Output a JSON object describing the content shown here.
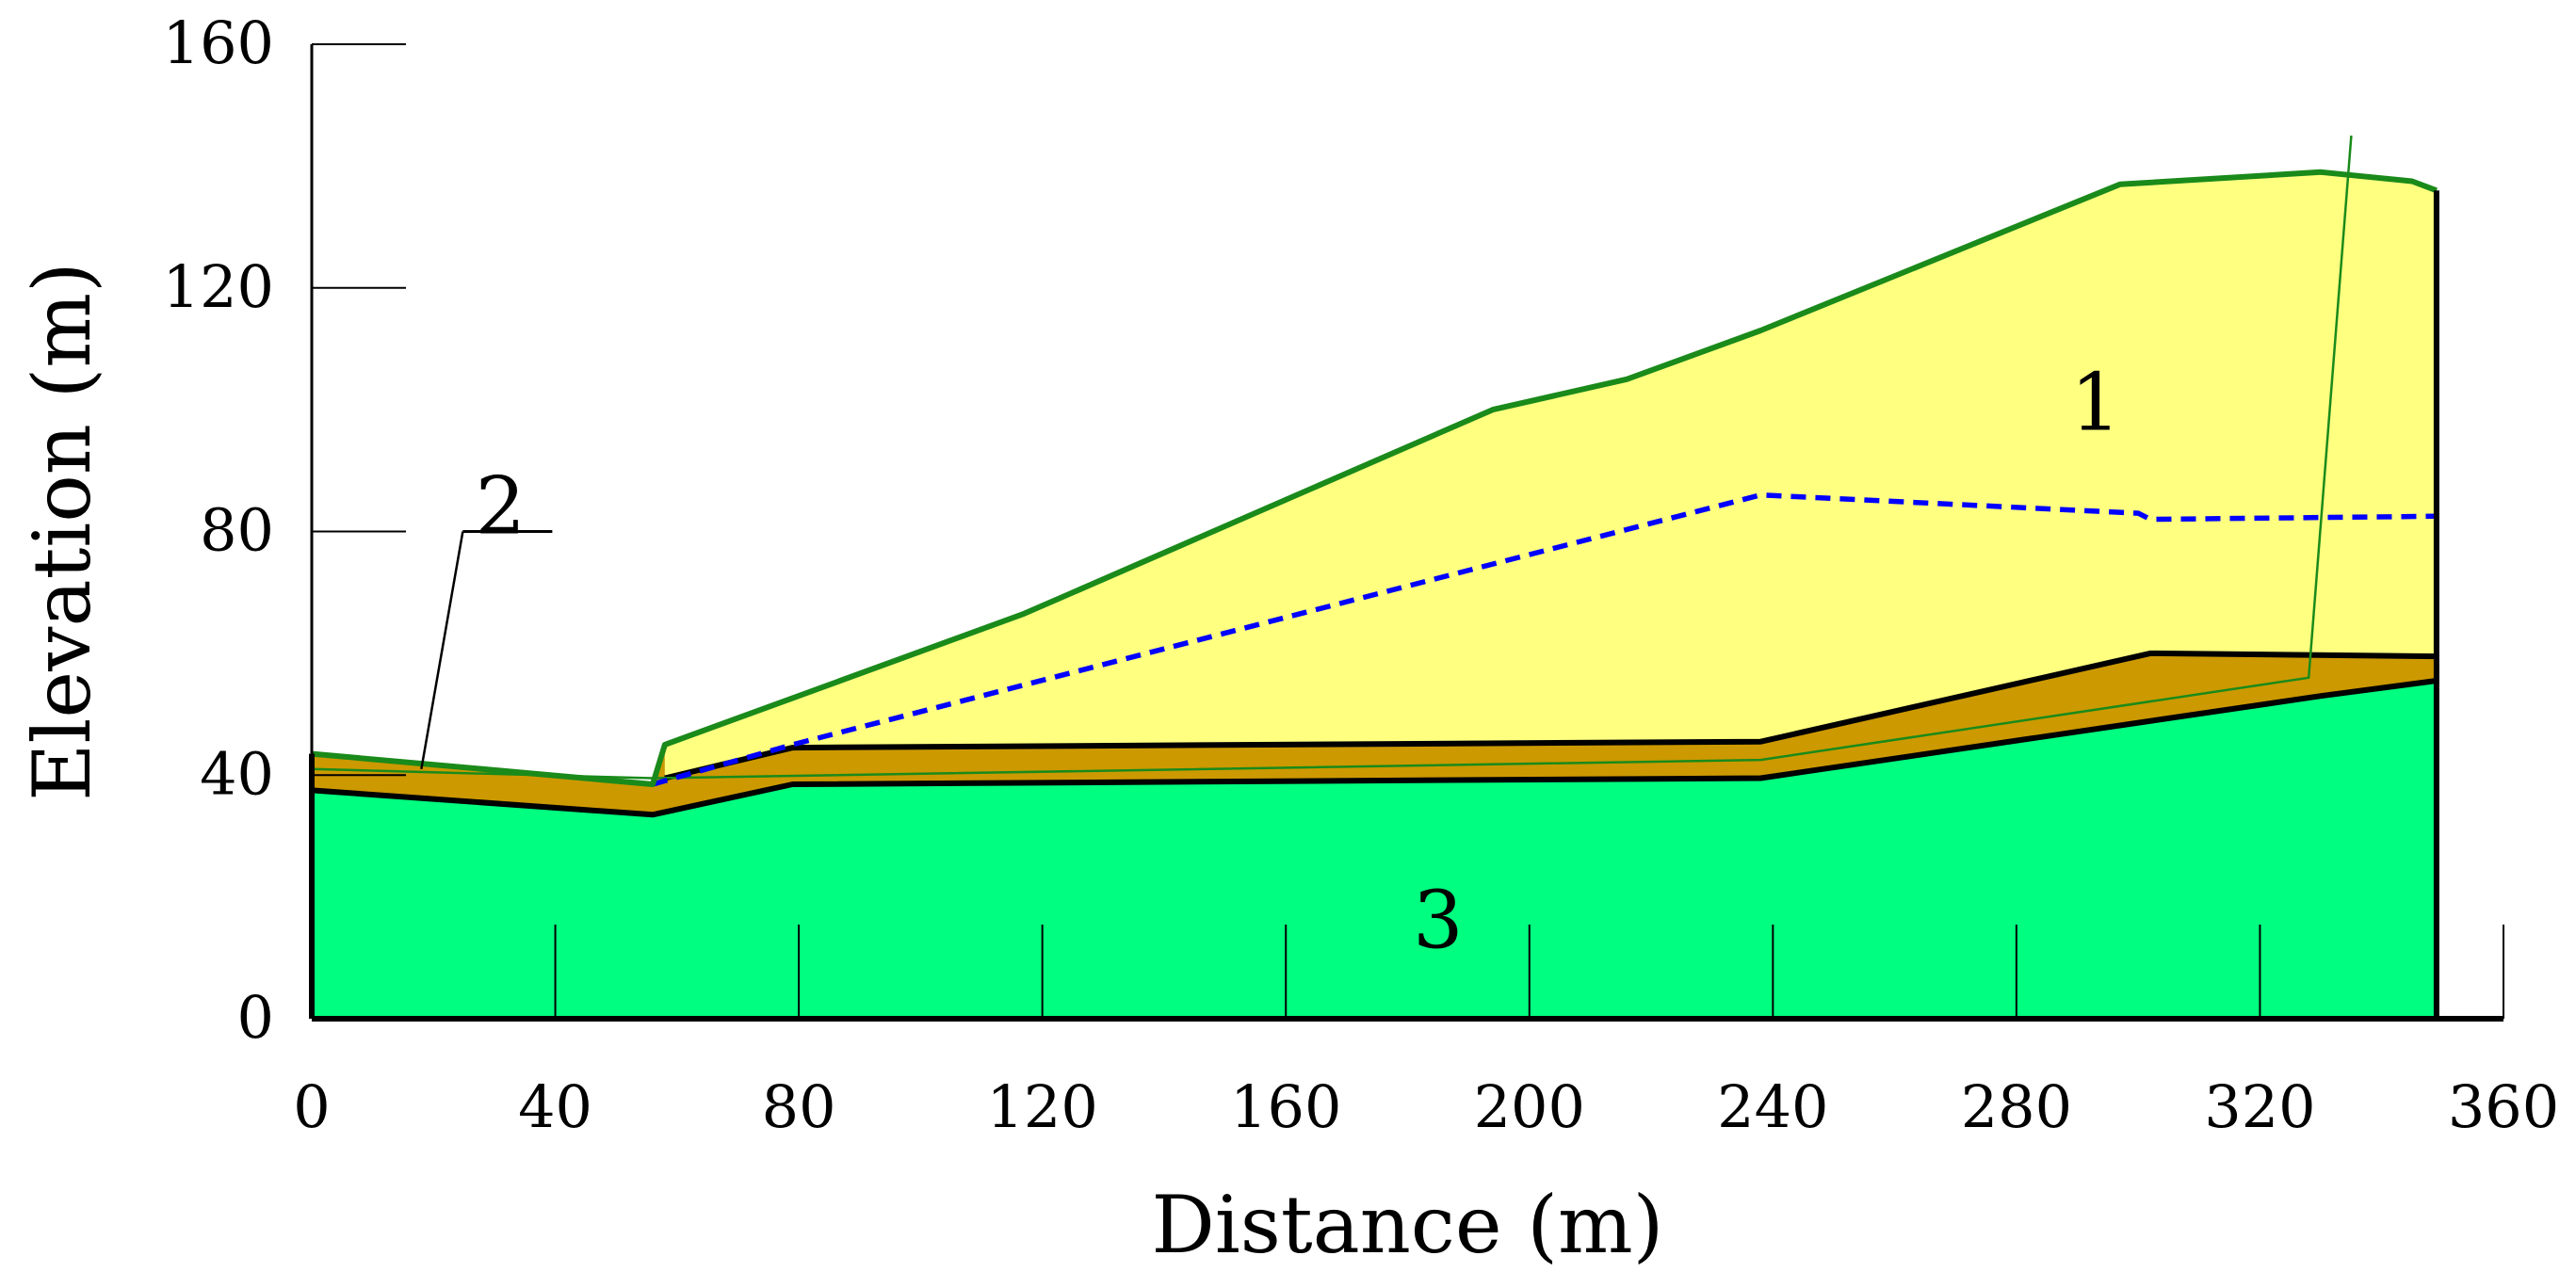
{
  "chart_data": {
    "type": "area",
    "title": "",
    "xlabel": "Distance (m)",
    "ylabel": "Elevation (m)",
    "xlim": [
      0,
      360
    ],
    "ylim": [
      0,
      160
    ],
    "x_ticks": [
      0,
      40,
      80,
      120,
      160,
      200,
      240,
      280,
      320,
      360
    ],
    "y_ticks": [
      0,
      40,
      80,
      120,
      160
    ],
    "x_tick_labels": [
      "0",
      "40",
      "80",
      "120",
      "160",
      "200",
      "240",
      "280",
      "320",
      "360"
    ],
    "y_tick_labels": [
      "0",
      "40",
      "80",
      "120",
      "160"
    ],
    "colors": {
      "soil_1": "#ffff80",
      "soil_2": "#cc9900",
      "soil_3": "#00ff80",
      "ground_surface": "#1a8a1a",
      "boundary": "#000000",
      "water_table": "#0000ff",
      "slip_line": "#1a8a1a"
    },
    "ground_surface": {
      "x": [
        0,
        56,
        58,
        117,
        194,
        216,
        238,
        297,
        330,
        345,
        349
      ],
      "y": [
        43.5,
        38.5,
        45,
        66.5,
        100,
        105,
        113,
        137,
        139,
        137.5,
        136
      ]
    },
    "layer_1_bottom": {
      "x": [
        58,
        79,
        238,
        302,
        349
      ],
      "y": [
        39.5,
        44.5,
        45.5,
        60,
        59.5
      ]
    },
    "layer_2_bottom": {
      "x": [
        0,
        56,
        79,
        238,
        330,
        349
      ],
      "y": [
        37.5,
        33.5,
        38.5,
        39.5,
        53,
        55.5
      ]
    },
    "water_table": {
      "x": [
        56,
        79,
        238,
        300,
        302,
        349
      ],
      "y": [
        38.5,
        45,
        86,
        83,
        82,
        82.5
      ]
    },
    "slip_surface": {
      "x": [
        0,
        56,
        238,
        328,
        335
      ],
      "y": [
        41,
        39.5,
        42.5,
        56,
        145
      ]
    },
    "region_labels": [
      {
        "text": "1",
        "x": 293,
        "y": 101
      },
      {
        "text": "2",
        "x": 31,
        "y": 84
      },
      {
        "text": "3",
        "x": 185,
        "y": 16
      }
    ],
    "label_2_leader": {
      "x": [
        31,
        18
      ],
      "y": [
        80,
        41
      ]
    }
  }
}
